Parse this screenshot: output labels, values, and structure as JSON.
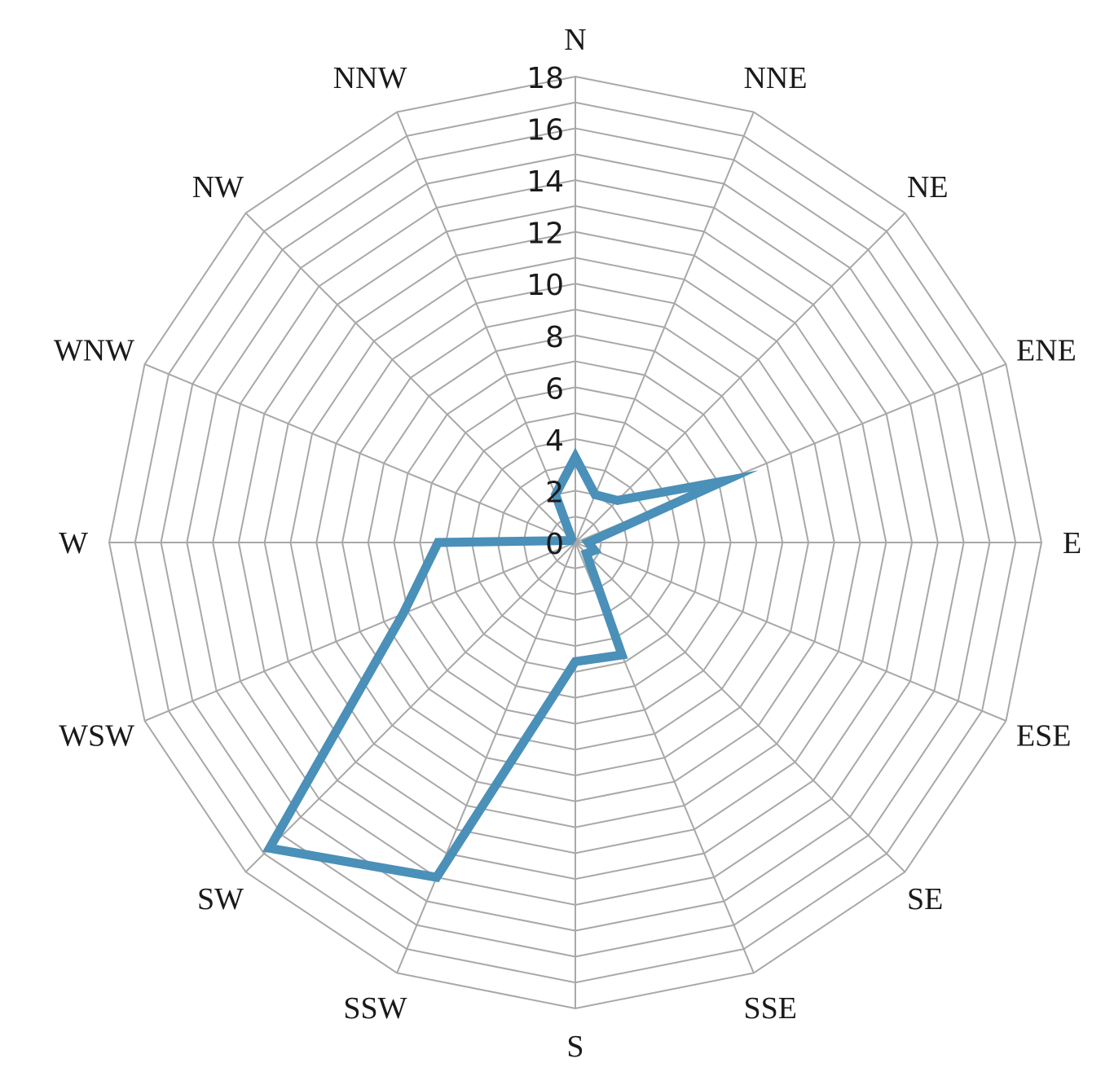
{
  "chart_data": {
    "type": "radar",
    "categories": [
      "N",
      "NNE",
      "NE",
      "ENE",
      "E",
      "ESE",
      "SE",
      "SSE",
      "S",
      "SSW",
      "SW",
      "WSW",
      "W",
      "WNW",
      "NW",
      "NNW"
    ],
    "series": [
      {
        "values": [
          3.3,
          2.0,
          2.3,
          6.2,
          0.5,
          0.8,
          0.6,
          4.7,
          4.6,
          14.0,
          16.7,
          7.2,
          5.3,
          0.2,
          0.2,
          2.0
        ],
        "color": "#4a90b8"
      }
    ],
    "radial_ticks": [
      "0",
      "2",
      "4",
      "6",
      "8",
      "10",
      "12",
      "14",
      "16",
      "18"
    ],
    "rmax": 18,
    "rstep": 1,
    "grid": true,
    "grid_color": "#a8a8a8",
    "title": "",
    "legend": "none"
  }
}
